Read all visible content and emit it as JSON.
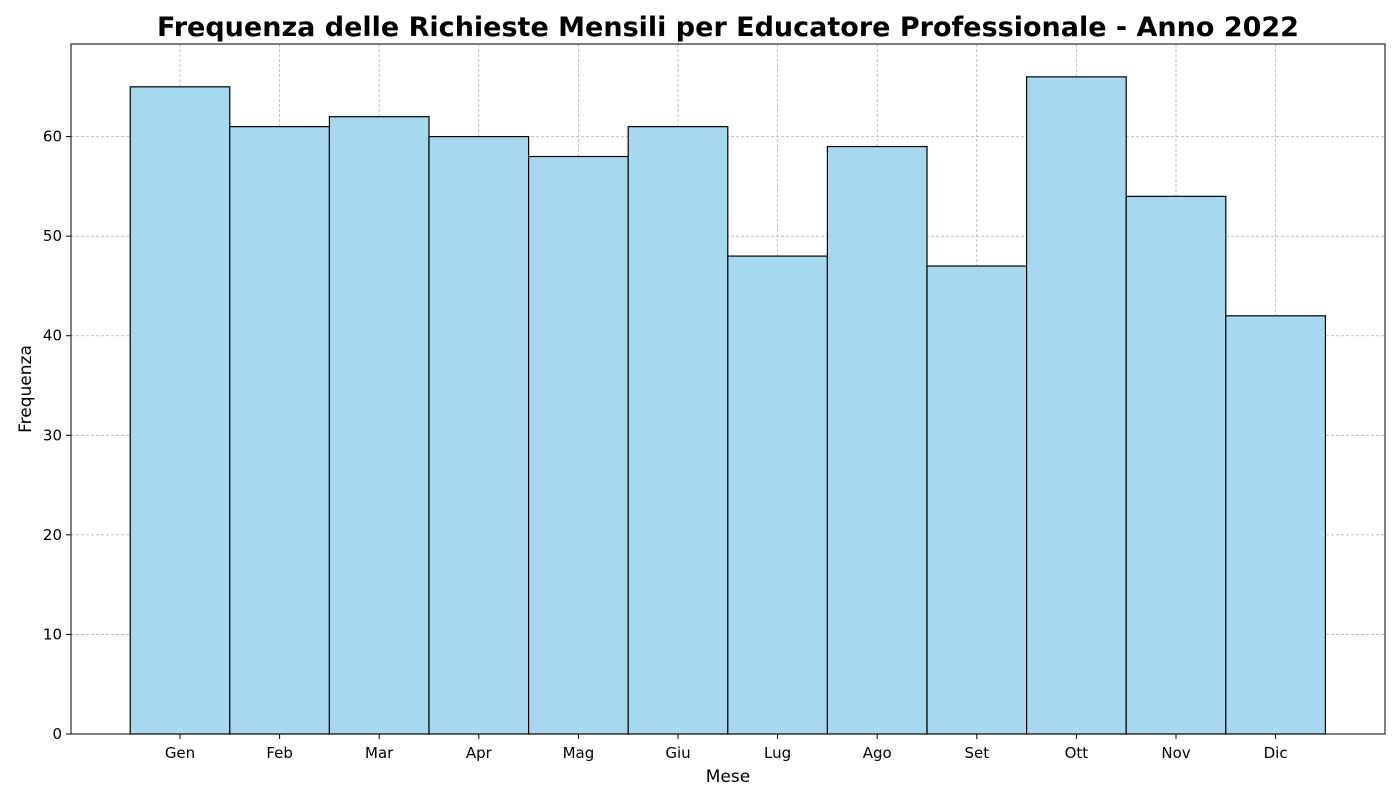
{
  "chart_data": {
    "type": "bar",
    "title": "Frequenza delle Richieste Mensili per Educatore Professionale - Anno 2022",
    "xlabel": "Mese",
    "ylabel": "Frequenza",
    "categories": [
      "Gen",
      "Feb",
      "Mar",
      "Apr",
      "Mag",
      "Giu",
      "Lug",
      "Ago",
      "Set",
      "Ott",
      "Nov",
      "Dic"
    ],
    "values": [
      65,
      61,
      62,
      60,
      58,
      61,
      48,
      59,
      47,
      66,
      54,
      42
    ],
    "ylim": [
      0,
      69.3
    ],
    "yticks": [
      "0",
      "10",
      "20",
      "30",
      "40",
      "50",
      "60"
    ],
    "grid": true,
    "bar_color": "#a6d9ef",
    "edge_color": "#000000"
  }
}
